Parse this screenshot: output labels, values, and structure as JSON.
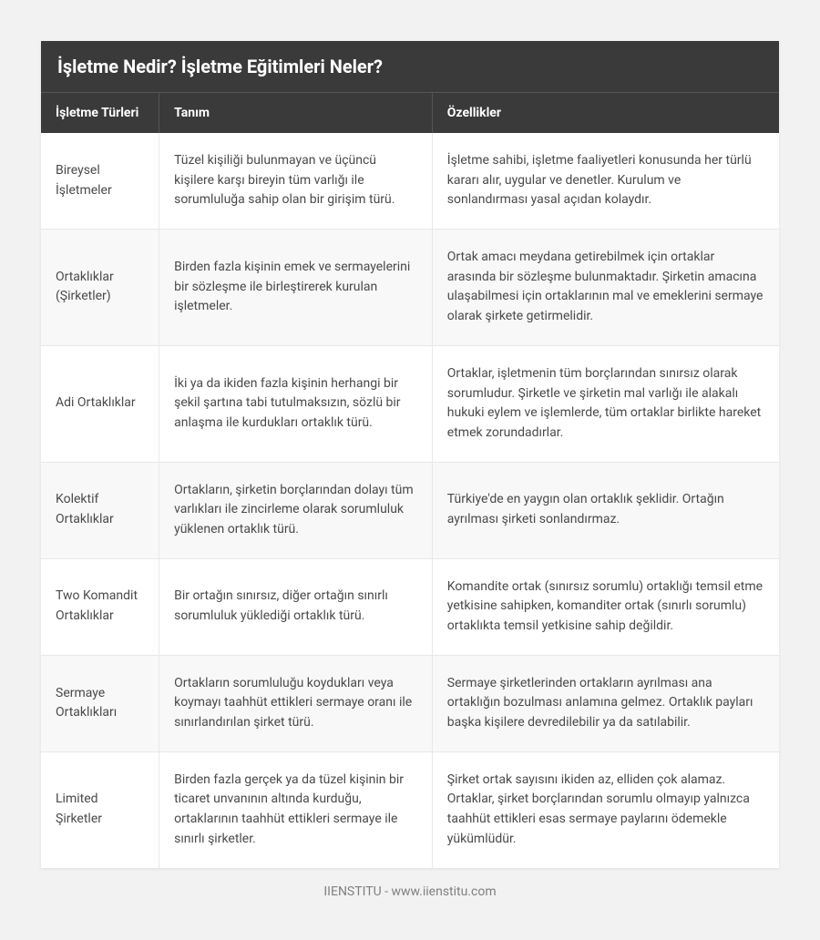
{
  "title": "İşletme Nedir? İşletme Eğitimleri Neler?",
  "columns": {
    "type": "İşletme Türleri",
    "definition": "Tanım",
    "features": "Özellikler"
  },
  "rows": [
    {
      "type": "Bireysel İşletmeler",
      "definition": "Tüzel kişiliği bulunmayan ve üçüncü kişilere karşı bireyin tüm varlığı ile sorumluluğa sahip olan bir girişim türü.",
      "features": "İşletme sahibi, işletme faaliyetleri konusunda her türlü kararı alır, uygular ve denetler. Kurulum ve sonlandırması yasal açıdan kolaydır."
    },
    {
      "type": "Ortaklıklar (Şirketler)",
      "definition": "Birden fazla kişinin emek ve sermayelerini bir sözleşme ile birleştirerek kurulan işletmeler.",
      "features": "Ortak amacı meydana getirebilmek için ortaklar arasında bir sözleşme bulunmaktadır. Şirketin amacına ulaşabilmesi için ortaklarının mal ve emeklerini sermaye olarak şirkete getirmelidir."
    },
    {
      "type": "Adi Ortaklıklar",
      "definition": "İki ya da ikiden fazla kişinin herhangi bir şekil şartına tabi tutulmaksızın, sözlü bir anlaşma ile kurdukları ortaklık türü.",
      "features": "Ortaklar, işletmenin tüm borçlarından sınırsız olarak sorumludur. Şirketle ve şirketin mal varlığı ile alakalı hukuki eylem ve işlemlerde, tüm ortaklar birlikte hareket etmek zorundadırlar."
    },
    {
      "type": "Kolektif Ortaklıklar",
      "definition": "Ortakların, şirketin borçlarından dolayı tüm varlıkları ile zincirleme olarak sorumluluk yüklenen ortaklık türü.",
      "features": "Türkiye'de en yaygın olan ortaklık şeklidir. Ortağın ayrılması şirketi sonlandırmaz."
    },
    {
      "type": "Two Komandit Ortaklıklar",
      "definition": "Bir ortağın sınırsız, diğer ortağın sınırlı sorumluluk yüklediği ortaklık türü.",
      "features": "Komandite ortak (sınırsız sorumlu) ortaklığı temsil etme yetkisine sahipken, komanditer ortak (sınırlı sorumlu) ortaklıkta temsil yetkisine sahip değildir."
    },
    {
      "type": "Sermaye Ortaklıkları",
      "definition": "Ortakların sorumluluğu koydukları veya koymayı taahhüt ettikleri sermaye oranı ile sınırlandırılan şirket türü.",
      "features": "Sermaye şirketlerinden ortakların ayrılması ana ortaklığın bozulması anlamına gelmez. Ortaklık payları başka kişilere devredilebilir ya da satılabilir."
    },
    {
      "type": "Limited Şirketler",
      "definition": "Birden fazla gerçek ya da tüzel kişinin bir ticaret unvanının altında kurduğu, ortaklarının taahhüt ettikleri sermaye ile sınırlı şirketler.",
      "features": "Şirket ortak sayısını ikiden az, elliden çok alamaz. Ortaklar, şirket borçlarından sorumlu olmayıp yalnızca taahhüt ettikleri esas sermaye paylarını ödemekle yükümlüdür."
    }
  ],
  "footer": "IIENSTITU - www.iienstitu.com",
  "styling": {
    "page_background": "#f2f2f2",
    "header_background": "#3a3a3a",
    "header_text_color": "#ffffff",
    "cell_text_color": "#4a4a4a",
    "row_alt_background": "#f8f8f8",
    "border_color": "#e8e8e8",
    "footer_color": "#808080",
    "title_fontsize": 20,
    "header_fontsize": 14,
    "body_fontsize": 14,
    "col_widths": [
      "16%",
      "37%",
      "47%"
    ]
  }
}
